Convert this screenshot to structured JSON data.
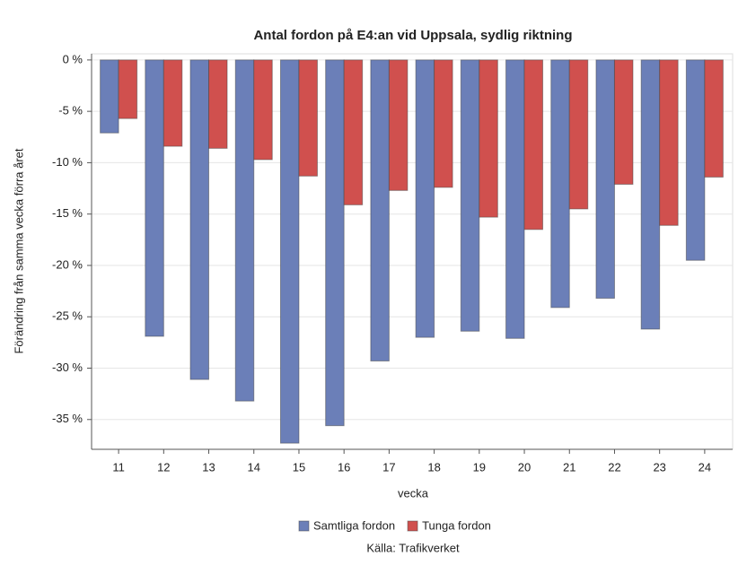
{
  "chart_data": {
    "type": "bar",
    "title": "Antal fordon på E4:an vid Uppsala, sydlig riktning",
    "x_label": "vecka",
    "y_label": "Förändring från samma vecka förra året",
    "source": "Källa: Trafikverket",
    "categories": [
      "11",
      "12",
      "13",
      "14",
      "15",
      "16",
      "17",
      "18",
      "19",
      "20",
      "21",
      "22",
      "23",
      "24"
    ],
    "series": [
      {
        "name": "Samtliga fordon",
        "color": "#6b7fb8",
        "values": [
          -7.1,
          -26.9,
          -31.1,
          -33.2,
          -37.3,
          -35.6,
          -29.3,
          -27.0,
          -26.4,
          -27.1,
          -24.1,
          -23.2,
          -26.2,
          -19.5
        ]
      },
      {
        "name": "Tunga fordon",
        "color": "#d0504e",
        "values": [
          -5.7,
          -8.4,
          -8.6,
          -9.7,
          -11.3,
          -14.1,
          -12.7,
          -12.4,
          -15.3,
          -16.5,
          -14.5,
          -12.1,
          -16.1,
          -11.4
        ]
      }
    ],
    "ylim": [
      -37.9,
      0.6
    ],
    "yticks": [
      {
        "value": 0,
        "label": "0 %"
      },
      {
        "value": -5,
        "label": "-5 %"
      },
      {
        "value": -10,
        "label": "-10 %"
      },
      {
        "value": -15,
        "label": "-15 %"
      },
      {
        "value": -20,
        "label": "-20 %"
      },
      {
        "value": -25,
        "label": "-25 %"
      },
      {
        "value": -30,
        "label": "-30 %"
      },
      {
        "value": -35,
        "label": "-35 %"
      }
    ],
    "grid": true
  }
}
